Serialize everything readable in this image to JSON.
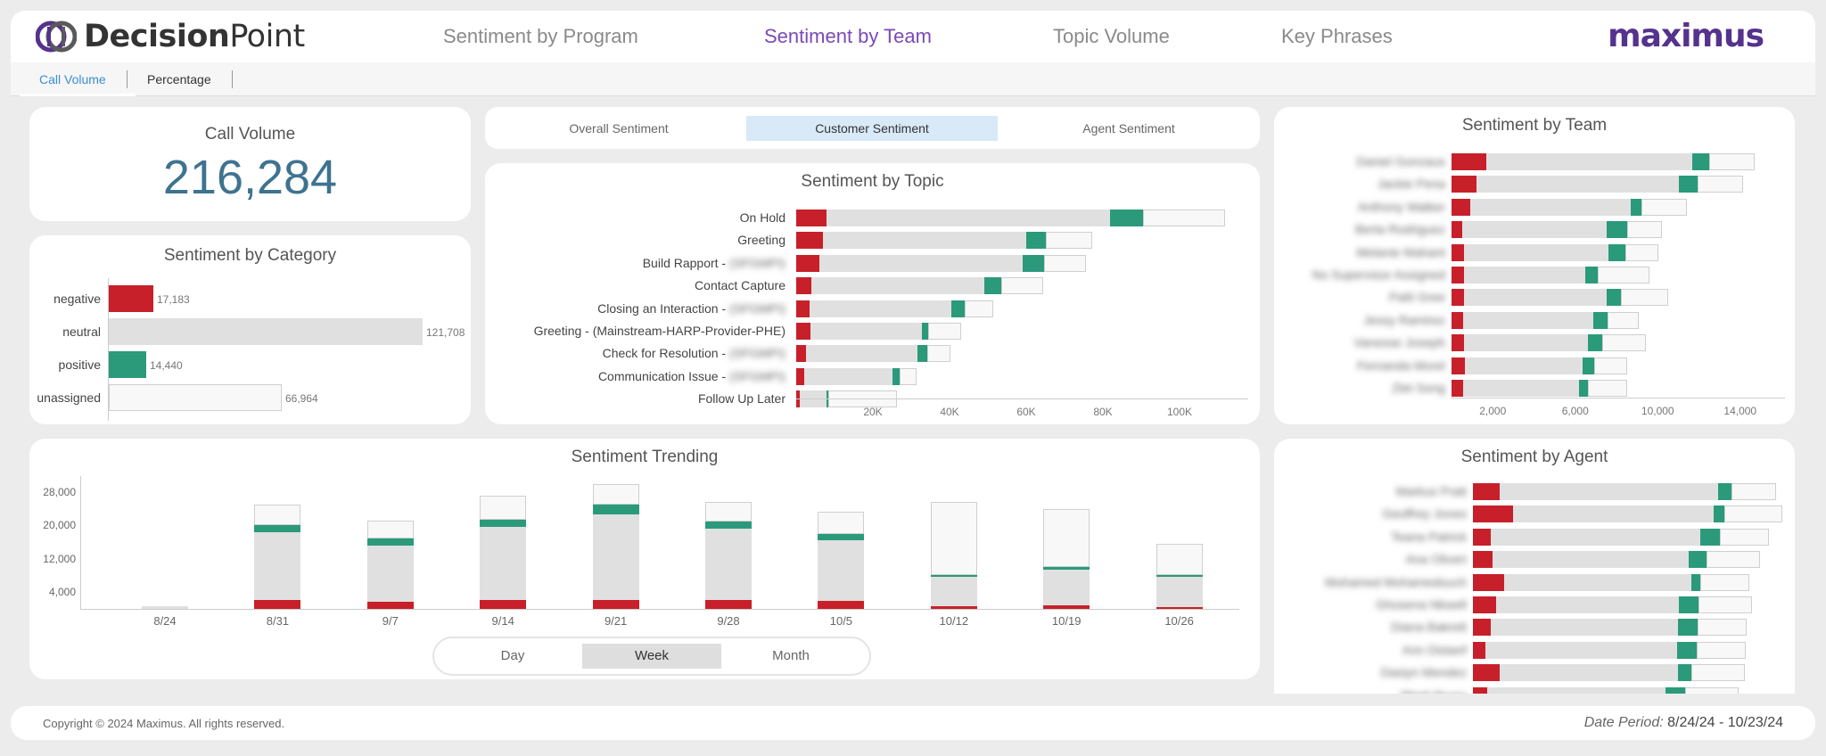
{
  "header": {
    "logo_decision": "Decision",
    "logo_point": "Point",
    "nav": [
      "Sentiment by Program",
      "Sentiment by Team",
      "Topic Volume",
      "Key Phrases"
    ],
    "brand": "maximus"
  },
  "subtabs": [
    "Call Volume",
    "Percentage"
  ],
  "call_volume": {
    "title": "Call Volume",
    "value": "216,284"
  },
  "category": {
    "title": "Sentiment by Category",
    "rows": [
      {
        "label": "negative",
        "value": "17,183"
      },
      {
        "label": "neutral",
        "value": "121,708"
      },
      {
        "label": "positive",
        "value": "14,440"
      },
      {
        "label": "unassigned",
        "value": "66,964"
      }
    ]
  },
  "sentiment_toggle": [
    "Overall Sentiment",
    "Customer Sentiment",
    "Agent Sentiment"
  ],
  "topic": {
    "title": "Sentiment by Topic",
    "rows": [
      {
        "label": "On Hold",
        "blur": ""
      },
      {
        "label": "Greeting",
        "blur": ""
      },
      {
        "label": "Build Rapport - ",
        "blur": "(SFGMPI)"
      },
      {
        "label": "Contact Capture",
        "blur": ""
      },
      {
        "label": "Closing an Interaction - ",
        "blur": "(SFGMPI)"
      },
      {
        "label": "Greeting - (Mainstream-HARP-Provider-PHE)",
        "blur": ""
      },
      {
        "label": "Check for Resolution - ",
        "blur": "(SFGMPI)"
      },
      {
        "label": "Communication Issue - ",
        "blur": "(SFGMPI)"
      },
      {
        "label": "Follow Up Later",
        "blur": ""
      }
    ],
    "ticks": [
      "20K",
      "40K",
      "60K",
      "80K",
      "100K"
    ]
  },
  "team": {
    "title": "Sentiment by Team",
    "names": [
      "Daniel Gonzaus",
      "Jackie Pena",
      "Anthony Walker",
      "Berta Rodriguez",
      "Melanie Mahant",
      "No Supervisor Assigned",
      "Patti Gree",
      "Jessy Ramirez",
      "Vanesse Joseph",
      "Fernanda Morel",
      "Zlet Song"
    ],
    "ticks": [
      "2,000",
      "6,000",
      "10,000",
      "14,000"
    ]
  },
  "trend": {
    "title": "Sentiment Trending",
    "y_ticks": [
      "28,000",
      "20,000",
      "12,000",
      "4,000"
    ],
    "x_labels": [
      "8/24",
      "8/31",
      "9/7",
      "9/14",
      "9/21",
      "9/28",
      "10/5",
      "10/12",
      "10/19",
      "10/26"
    ],
    "periods": [
      "Day",
      "Week",
      "Month"
    ]
  },
  "agent": {
    "title": "Sentiment by Agent",
    "names": [
      "Markus Pratt",
      "Geoffrey Jones",
      "Teana Patrick",
      "Ana Oliveri",
      "Mohamed Mohamedouch",
      "Ghosena Nkwell",
      "Diana Bakrett",
      "Ann Distanf",
      "Dasiyn Mendez",
      "Rhett Bruny"
    ]
  },
  "footer": {
    "copyright": "Copyright © 2024 Maximus. All rights reserved.",
    "date_label": "Date Period:",
    "date_value": "8/24/24 - 10/23/24"
  },
  "chart_data": [
    {
      "type": "bar",
      "title": "Sentiment by Category",
      "categories": [
        "negative",
        "neutral",
        "positive",
        "unassigned"
      ],
      "values": [
        17183,
        121708,
        14440,
        66964
      ],
      "colors": [
        "#c8202a",
        "#e0e0e0",
        "#2a9a7b",
        "#f8f8f8"
      ]
    },
    {
      "type": "bar",
      "title": "Sentiment by Topic",
      "categories": [
        "On Hold",
        "Greeting",
        "Build Rapport",
        "Contact Capture",
        "Closing an Interaction",
        "Greeting - (Mainstream-HARP-Provider-PHE)",
        "Check for Resolution",
        "Communication Issue",
        "Follow Up Later"
      ],
      "series": [
        {
          "name": "negative",
          "values": [
            8000,
            7000,
            6000,
            4000,
            3500,
            3800,
            2600,
            2200,
            1000
          ]
        },
        {
          "name": "neutral",
          "values": [
            74000,
            53000,
            53000,
            45000,
            37000,
            29000,
            29000,
            23000,
            7000
          ]
        },
        {
          "name": "positive",
          "values": [
            8500,
            5000,
            5500,
            4500,
            3500,
            1700,
            2500,
            1800,
            400
          ]
        },
        {
          "name": "unassigned",
          "values": [
            21500,
            12000,
            11000,
            11000,
            7500,
            8500,
            6000,
            4500,
            18000
          ]
        }
      ],
      "xlim": [
        0,
        120000
      ]
    },
    {
      "type": "bar",
      "title": "Sentiment by Team",
      "series": [
        {
          "name": "negative",
          "values": [
            1700,
            1200,
            900,
            500,
            600,
            600,
            600,
            550,
            600,
            650,
            550
          ]
        },
        {
          "name": "neutral",
          "values": [
            10000,
            9800,
            7800,
            7000,
            7000,
            5900,
            6900,
            6300,
            6000,
            5700,
            5600
          ]
        },
        {
          "name": "positive",
          "values": [
            800,
            900,
            500,
            1000,
            800,
            600,
            700,
            700,
            700,
            550,
            450
          ]
        },
        {
          "name": "unassigned",
          "values": [
            2200,
            2200,
            2200,
            1700,
            1600,
            2500,
            2300,
            1500,
            2100,
            1600,
            1900
          ]
        }
      ],
      "xlim": [
        0,
        16000
      ]
    },
    {
      "type": "bar",
      "title": "Sentiment Trending",
      "categories": [
        "8/24",
        "8/31",
        "9/7",
        "9/14",
        "9/21",
        "9/28",
        "10/5",
        "10/12",
        "10/19",
        "10/26"
      ],
      "series": [
        {
          "name": "negative",
          "values": [
            0,
            2200,
            1600,
            2200,
            2200,
            2200,
            2000,
            600,
            800,
            500
          ]
        },
        {
          "name": "neutral",
          "values": [
            600,
            16200,
            13500,
            17500,
            20500,
            17000,
            14500,
            7000,
            8500,
            7200
          ]
        },
        {
          "name": "positive",
          "values": [
            0,
            1600,
            1800,
            1800,
            2400,
            1800,
            1400,
            500,
            600,
            400
          ]
        },
        {
          "name": "unassigned",
          "values": [
            0,
            5000,
            4200,
            5800,
            4800,
            4700,
            5400,
            17400,
            13800,
            7500
          ]
        }
      ],
      "ylim": [
        0,
        32000
      ],
      "y_ticks": [
        4000,
        12000,
        20000,
        28000
      ]
    },
    {
      "type": "bar",
      "title": "Sentiment by Agent",
      "series": [
        {
          "name": "negative",
          "values": [
            30,
            45,
            20,
            22,
            35,
            26,
            20,
            14,
            30,
            16
          ]
        },
        {
          "name": "neutral",
          "values": [
            245,
            225,
            235,
            220,
            210,
            205,
            210,
            215,
            200,
            200
          ]
        },
        {
          "name": "positive",
          "values": [
            15,
            12,
            22,
            20,
            10,
            22,
            22,
            22,
            15,
            22
          ]
        },
        {
          "name": "unassigned",
          "values": [
            50,
            65,
            55,
            60,
            55,
            60,
            55,
            55,
            60,
            60
          ]
        }
      ]
    }
  ]
}
